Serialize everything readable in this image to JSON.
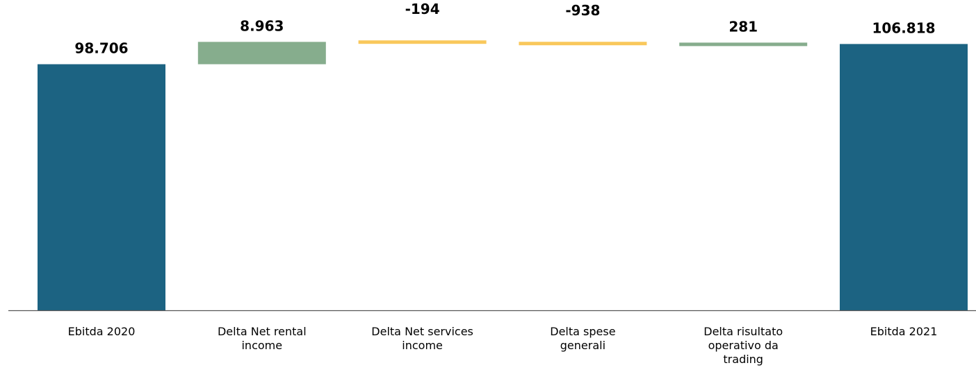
{
  "chart_data": {
    "type": "waterfall",
    "categories": [
      [
        "Ebitda 2020"
      ],
      [
        "Delta Net rental",
        "income"
      ],
      [
        "Delta Net services",
        "income"
      ],
      [
        "Delta spese",
        "generali"
      ],
      [
        "Delta risultato",
        "operativo da",
        "trading"
      ],
      [
        "Ebitda 2021"
      ]
    ],
    "values": [
      98706,
      8963,
      -194,
      -938,
      281,
      106818
    ],
    "value_labels": [
      "98.706",
      "8.963",
      "-194",
      "-938",
      "281",
      "106.818"
    ],
    "kinds": [
      "total",
      "increase",
      "decrease",
      "decrease",
      "increase",
      "total"
    ],
    "ylim": [
      0,
      115000
    ],
    "grid": false,
    "legend": "none",
    "colors": {
      "total": "#1c6382",
      "increase": "#86ad8d",
      "decrease": "#f9c85c",
      "axis": "#555555"
    }
  }
}
